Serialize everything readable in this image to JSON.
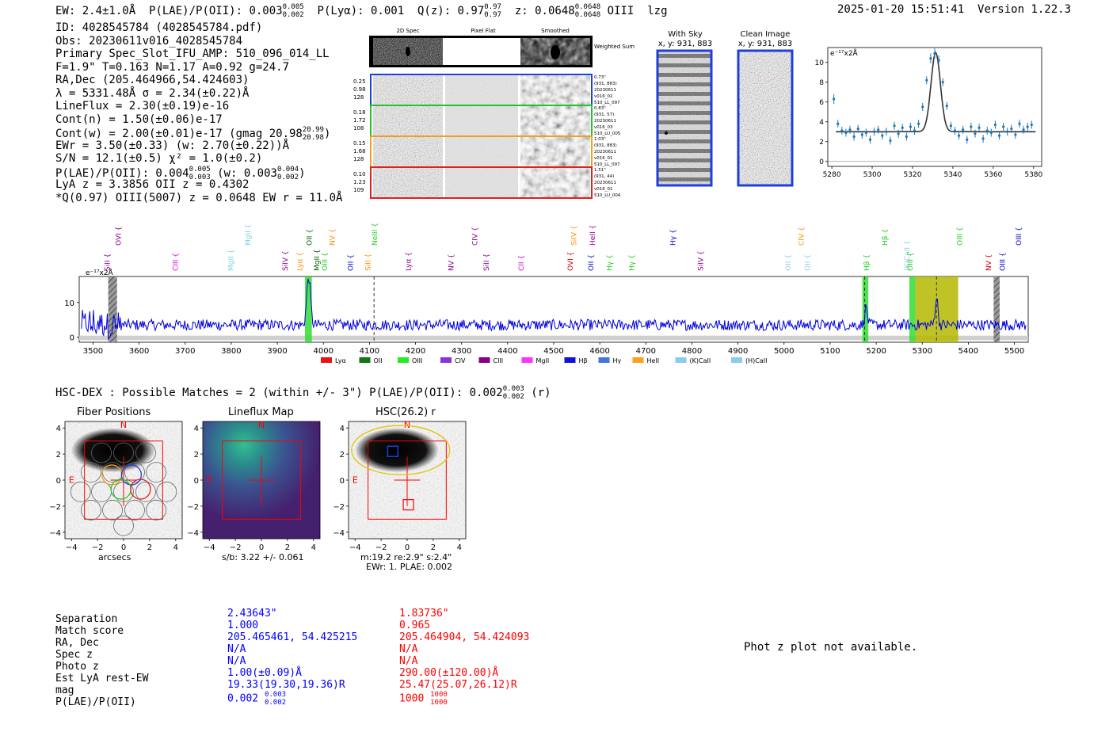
{
  "header": {
    "ew": "EW: 2.4±1.0Å",
    "plae_label": "P(LAE)/P(OII): 0.003",
    "plae_hi": "0.005",
    "plae_lo": "0.002",
    "plya": "P(Lyα): 0.001",
    "qz_label": "Q(z): 0.97",
    "qz_hi": "0.97",
    "qz_lo": "0.97",
    "z_label": "z: 0.0648",
    "z_hi": "0.0648",
    "z_lo": "0.0648",
    "line": "OIII",
    "flag": "lzg",
    "timestamp": "2025-01-20 15:51:41",
    "version": "Version 1.22.3"
  },
  "info": {
    "id": "ID: 4028545784 (4028545784.pdf)",
    "obs": "Obs: 20230611v016_4028545784",
    "primary": "Primary Spec_Slot_IFU_AMP: 510_096_014_LL",
    "params": "F=1.9\"  T=0.163  N=1.17  A=0.92  g=24.7",
    "radec": "RA,Dec (205.464966,54.424603)",
    "lambda": "λ = 5331.48Å  σ = 2.34(±0.22)Å",
    "lineflux": "LineFlux = 2.30(±0.19)e-16",
    "contn": "Cont(n) = 1.50(±0.06)e-17",
    "contw": "Cont(w) = 2.00(±0.01)e-17 (gmag 20.98",
    "contw_hi": "20.99",
    "contw_lo": "20.98",
    "ewr": "EWr = 3.50(±0.33) (w: 2.70(±0.22))Å",
    "sn": "S/N = 12.1(±0.5)  χ² = 1.0(±0.2)",
    "plae": "P(LAE)/P(OII): 0.004",
    "plae_hi": "0.005",
    "plae_lo": "0.003",
    "plae_w": "(w: 0.003",
    "plae_w_hi": "0.004",
    "plae_w_lo": "0.002",
    "lya": "LyA z = 3.3856  OII z = 0.4302",
    "q": "*Q(0.97) OIII(5007) z = 0.0648  EW r = 11.0Å"
  },
  "stamps": {
    "col_headers": [
      "2D Spec",
      "Pixel Flat",
      "Smoothed"
    ],
    "weighted_label": "Weighted Sum",
    "rows": [
      {
        "stats": [
          "0.25",
          "0.98",
          "128"
        ],
        "meta": [
          "0.73\"",
          "(931, 883)",
          "20230611",
          "v016_02",
          "510_LL_097"
        ],
        "color": "#1f3fdc"
      },
      {
        "stats": [
          "0.18",
          "1.72",
          "108"
        ],
        "meta": [
          "0.83\"",
          "(931, 57)",
          "20230611",
          "v016_03",
          "510_LU_005"
        ],
        "color": "#22c32a"
      },
      {
        "stats": [
          "0.15",
          "1.68",
          "128"
        ],
        "meta": [
          "1.03\"",
          "(931, 883)",
          "20230611",
          "v016_01",
          "510_LL_097"
        ],
        "color": "#f0a020"
      },
      {
        "stats": [
          "0.10",
          "1.23",
          "109"
        ],
        "meta": [
          "1.51\"",
          "(931, 44)",
          "20230611",
          "v016_01",
          "510_LU_004"
        ],
        "color": "#e02020"
      }
    ]
  },
  "ccd": {
    "with_sky_title": "With Sky",
    "with_sky_coords": "x, y: 931, 883",
    "clean_title": "Clean Image",
    "clean_coords": "x, y: 931, 883"
  },
  "colors": {
    "blue": "#0000ff",
    "red": "#ff0000",
    "line_blue": "#1f77b4",
    "olive": "#b5b800",
    "green_band": "#33dd33"
  },
  "hsc": {
    "summary": "HSC-DEX : Possible Matches = 2 (within +/- 3\")  P(LAE)/P(OII): 0.002",
    "summary_hi": "0.003",
    "summary_lo": "0.002",
    "summary_band": "(r)",
    "panels": [
      {
        "title": "Fiber Positions",
        "caption": [
          "arcsecs"
        ]
      },
      {
        "title": "Lineflux Map",
        "caption": [
          "s/b: 3.22 +/- 0.061"
        ]
      },
      {
        "title": "HSC(26.2) r",
        "caption": [
          "m:19.2  re:2.9\"  s:2.4\"",
          "EWr: 1. PLAE: 0.002"
        ]
      }
    ],
    "compass": {
      "n": "N",
      "e": "E"
    }
  },
  "matches": {
    "labels": [
      "Separation",
      "Match score",
      "RA, Dec",
      "Spec z",
      "Photo z",
      "Est LyA rest-EW",
      "mag",
      "P(LAE)/P(OII)"
    ],
    "match1": [
      "2.43643\"",
      "1.000",
      "205.465461, 54.425215",
      "N/A",
      "N/A",
      "1.00(±0.09)Å",
      "19.33(19.30,19.36)R",
      "0.002"
    ],
    "match1_plae_hi": "0.003",
    "match1_plae_lo": "0.002",
    "match2": [
      "1.83736\"",
      "0.965",
      "205.464904, 54.424093",
      "N/A",
      "N/A",
      "290.00(±120.00)Å",
      "25.47(25.07,26.12)R",
      "1000"
    ],
    "match2_plae_hi": "1000",
    "match2_plae_lo": "1000",
    "photz_note": "Phot z plot not available."
  },
  "chart_data": [
    {
      "type": "scatter",
      "name": "line-fit-panel",
      "ylabel": "e⁻¹⁷x2Å",
      "xlim": [
        5278,
        5384
      ],
      "ylim": [
        -0.5,
        11.5
      ],
      "xticks": [
        5280,
        5300,
        5320,
        5340,
        5360,
        5380
      ],
      "yticks": [
        0,
        2,
        4,
        6,
        8,
        10
      ],
      "points": [
        [
          5281,
          6.3,
          0.5
        ],
        [
          5283,
          3.8,
          0.4
        ],
        [
          5285,
          3.1,
          0.4
        ],
        [
          5287,
          2.9,
          0.4
        ],
        [
          5289,
          3.2,
          0.4
        ],
        [
          5291,
          2.5,
          0.4
        ],
        [
          5293,
          3.3,
          0.4
        ],
        [
          5295,
          2.7,
          0.4
        ],
        [
          5297,
          2.9,
          0.4
        ],
        [
          5299,
          2.2,
          0.4
        ],
        [
          5301,
          3.0,
          0.4
        ],
        [
          5303,
          3.2,
          0.4
        ],
        [
          5305,
          2.6,
          0.4
        ],
        [
          5307,
          3.0,
          0.4
        ],
        [
          5309,
          2.1,
          0.4
        ],
        [
          5311,
          3.6,
          0.4
        ],
        [
          5313,
          2.8,
          0.4
        ],
        [
          5315,
          3.4,
          0.4
        ],
        [
          5317,
          2.5,
          0.4
        ],
        [
          5319,
          3.5,
          0.4
        ],
        [
          5321,
          3.1,
          0.4
        ],
        [
          5323,
          3.8,
          0.4
        ],
        [
          5325,
          5.5,
          0.4
        ],
        [
          5327,
          8.2,
          0.4
        ],
        [
          5329,
          10.4,
          0.5
        ],
        [
          5331,
          10.9,
          0.5
        ],
        [
          5333,
          10.2,
          0.5
        ],
        [
          5335,
          8.0,
          0.4
        ],
        [
          5337,
          5.6,
          0.4
        ],
        [
          5339,
          3.6,
          0.4
        ],
        [
          5341,
          3.1,
          0.4
        ],
        [
          5343,
          2.6,
          0.4
        ],
        [
          5345,
          3.2,
          0.4
        ],
        [
          5347,
          2.2,
          0.4
        ],
        [
          5349,
          3.5,
          0.4
        ],
        [
          5351,
          2.8,
          0.4
        ],
        [
          5353,
          3.4,
          0.4
        ],
        [
          5355,
          2.3,
          0.4
        ],
        [
          5357,
          3.1,
          0.4
        ],
        [
          5359,
          2.9,
          0.4
        ],
        [
          5361,
          3.7,
          0.4
        ],
        [
          5363,
          2.6,
          0.4
        ],
        [
          5365,
          3.5,
          0.4
        ],
        [
          5367,
          3.0,
          0.4
        ],
        [
          5369,
          3.3,
          0.4
        ],
        [
          5371,
          2.7,
          0.4
        ],
        [
          5373,
          3.8,
          0.4
        ],
        [
          5375,
          3.2,
          0.4
        ],
        [
          5377,
          3.5,
          0.4
        ],
        [
          5379,
          3.7,
          0.4
        ]
      ],
      "fit": {
        "center": 5331.48,
        "sigma": 2.34,
        "amplitude": 8.0,
        "continuum": 3.0
      }
    },
    {
      "type": "line",
      "name": "full-spectrum",
      "ylabel": "e⁻¹⁷x2Å",
      "xlim": [
        3470,
        5530
      ],
      "ylim": [
        -1.5,
        17.5
      ],
      "xticks": [
        3500,
        3600,
        3700,
        3800,
        3900,
        4000,
        4100,
        4200,
        4300,
        4400,
        4500,
        4600,
        4700,
        4800,
        4900,
        5000,
        5100,
        5200,
        5300,
        5400,
        5500
      ],
      "yticks": [
        0,
        10
      ],
      "continuum": 3.5,
      "peaks": [
        {
          "x": 3968,
          "amp": 14,
          "sigma": 4
        },
        {
          "x": 5178,
          "amp": 5,
          "sigma": 3
        },
        {
          "x": 5331,
          "amp": 8,
          "sigma": 3
        }
      ],
      "bands": [
        {
          "from": 3960,
          "to": 3975,
          "color": "#33dd33"
        },
        {
          "from": 5170,
          "to": 5183,
          "color": "#33dd33"
        },
        {
          "from": 5272,
          "to": 5285,
          "color": "#33dd33"
        },
        {
          "from": 5285,
          "to": 5378,
          "color": "#b5b800"
        }
      ],
      "hatched": [
        {
          "from": 3533,
          "to": 3552
        },
        {
          "from": 5455,
          "to": 5468
        }
      ],
      "dashed": [
        4110,
        5175,
        5331
      ],
      "lines_top": [
        {
          "x": 3532,
          "label": "SiII",
          "color": "#8b008b"
        },
        {
          "x": 3556,
          "label": "OVI",
          "color": "#8b008b"
        },
        {
          "x": 3680,
          "label": "CIII",
          "color": "#d400d4"
        },
        {
          "x": 3800,
          "label": "MgII",
          "color": "#87ceeb"
        },
        {
          "x": 3837,
          "label": "MgII",
          "color": "#87ceeb"
        },
        {
          "x": 3918,
          "label": "SiIV",
          "color": "#8b008b"
        },
        {
          "x": 3950,
          "label": "Lyα",
          "color": "#ff8c00"
        },
        {
          "x": 3970,
          "label": "OII",
          "color": "#006400"
        },
        {
          "x": 3987,
          "label": "MgII",
          "color": "#006400"
        },
        {
          "x": 4004,
          "label": "OIII",
          "color": "#22cc22"
        },
        {
          "x": 4020,
          "label": "NV",
          "color": "#ff8c00"
        },
        {
          "x": 4060,
          "label": "OII",
          "color": "#0000cc"
        },
        {
          "x": 4098,
          "label": "SiII",
          "color": "#ff8c00"
        },
        {
          "x": 4112,
          "label": "NeIII",
          "color": "#22cc22"
        },
        {
          "x": 4185,
          "label": "Lyα",
          "color": "#8b008b"
        },
        {
          "x": 4278,
          "label": "NV",
          "color": "#8b008b"
        },
        {
          "x": 4330,
          "label": "CIV",
          "color": "#8b008b"
        },
        {
          "x": 4355,
          "label": "SiII",
          "color": "#8b008b"
        },
        {
          "x": 4430,
          "label": "CII",
          "color": "#d400d4"
        },
        {
          "x": 4545,
          "label": "SiIV",
          "color": "#ff8c00"
        },
        {
          "x": 4537,
          "label": "OVI",
          "color": "#cc0000"
        },
        {
          "x": 4582,
          "label": "OII",
          "color": "#0000cc"
        },
        {
          "x": 4585,
          "label": "HeII",
          "color": "#8b008b"
        },
        {
          "x": 4622,
          "label": "Hγ",
          "color": "#22cc22"
        },
        {
          "x": 4670,
          "label": "Hγ",
          "color": "#22cc22"
        },
        {
          "x": 4760,
          "label": "Hγ",
          "color": "#0000cc"
        },
        {
          "x": 4820,
          "label": "SiIV",
          "color": "#8b008b"
        },
        {
          "x": 5010,
          "label": "OII",
          "color": "#87ceeb"
        },
        {
          "x": 5038,
          "label": "CIV",
          "color": "#ff8c00"
        },
        {
          "x": 5052,
          "label": "OII",
          "color": "#87ceeb"
        },
        {
          "x": 5180,
          "label": "Hβ",
          "color": "#22cc22"
        },
        {
          "x": 5220,
          "label": "Hβ",
          "color": "#22cc22"
        },
        {
          "x": 5268,
          "label": "(K)CaII",
          "color": "#87ceeb"
        },
        {
          "x": 5275,
          "label": "OIII",
          "color": "#22cc22"
        },
        {
          "x": 5382,
          "label": "OIII",
          "color": "#22cc22"
        },
        {
          "x": 5445,
          "label": "NV",
          "color": "#cc0000"
        },
        {
          "x": 5475,
          "label": "OIII",
          "color": "#0000cc"
        },
        {
          "x": 5510,
          "label": "OIII",
          "color": "#0000cc"
        }
      ],
      "legend": [
        {
          "label": "Lyα",
          "color": "#ee1111"
        },
        {
          "label": "OII",
          "color": "#117711"
        },
        {
          "label": "OIII",
          "color": "#22ee22"
        },
        {
          "label": "CIV",
          "color": "#8833dd"
        },
        {
          "label": "CIII",
          "color": "#880088"
        },
        {
          "label": "MgII",
          "color": "#ff33ff"
        },
        {
          "label": "Hβ",
          "color": "#1111dd"
        },
        {
          "label": "Hγ",
          "color": "#4477dd"
        },
        {
          "label": "HeII",
          "color": "#ffa020"
        },
        {
          "label": "(K)CaII",
          "color": "#88ccee"
        },
        {
          "label": "(H)CaII",
          "color": "#88ccee"
        }
      ]
    }
  ]
}
